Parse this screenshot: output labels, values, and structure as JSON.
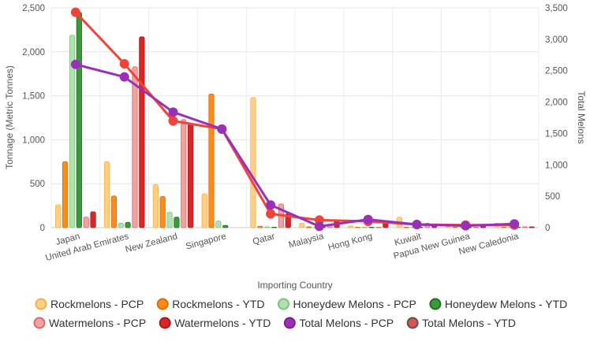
{
  "chart_data": {
    "type": "bar",
    "xlabel": "Importing Country",
    "ylabel_left": "Tonnage (Metric Tonnes)",
    "ylabel_right": "Total Melons",
    "ylim_left": [
      0,
      2500
    ],
    "ylim_right": [
      0,
      3500
    ],
    "yticks_left": [
      "0",
      "500",
      "1,000",
      "1,500",
      "2,000",
      "2,500"
    ],
    "yticks_right": [
      "0",
      "500",
      "1,000",
      "1,500",
      "2,000",
      "2,500",
      "3,000",
      "3,500"
    ],
    "grid": true,
    "legend_position": "bottom",
    "categories": [
      "Japan",
      "United Arab Emirates",
      "New Zealand",
      "Singapore",
      "Qatar",
      "Malaysia",
      "Hong Kong",
      "Kuwait",
      "Papua New Guinea",
      "New Caledonia"
    ],
    "bar_series": [
      {
        "name": "Rockmelons - PCP",
        "color": "#fdd08a",
        "edge": "#f5b04a",
        "values": [
          260,
          750,
          490,
          385,
          1480,
          50,
          20,
          120,
          10,
          50
        ]
      },
      {
        "name": "Rockmelons - YTD",
        "color": "#ff8c1a",
        "edge": "#e06b00",
        "values": [
          750,
          360,
          355,
          1520,
          15,
          10,
          5,
          5,
          5,
          5
        ]
      },
      {
        "name": "Honeydew Melons - PCP",
        "color": "#b3e0b3",
        "edge": "#7cc47c",
        "values": [
          2190,
          50,
          175,
          75,
          10,
          5,
          5,
          5,
          5,
          5
        ]
      },
      {
        "name": "Honeydew Melons - YTD",
        "color": "#3a9a3a",
        "edge": "#1f6e1f",
        "values": [
          2450,
          60,
          120,
          25,
          5,
          5,
          5,
          5,
          5,
          5
        ]
      },
      {
        "name": "Watermelons - PCP",
        "color": "#f2a0a0",
        "edge": "#d96a6a",
        "values": [
          120,
          1830,
          1230,
          0,
          270,
          30,
          5,
          50,
          5,
          10
        ]
      },
      {
        "name": "Watermelons - YTD",
        "color": "#d92626",
        "edge": "#a81818",
        "values": [
          180,
          2170,
          1180,
          0,
          160,
          80,
          80,
          40,
          20,
          10
        ]
      }
    ],
    "line_series": [
      {
        "name": "Total Melons - PCP",
        "color": "#9b30b8",
        "values": [
          2600,
          2400,
          1840,
          1570,
          360,
          20,
          130,
          50,
          30,
          60
        ]
      },
      {
        "name": "Total Melons - YTD",
        "color": "#f0443a",
        "values": [
          3430,
          2610,
          1700,
          1570,
          220,
          120,
          100,
          50,
          40,
          40
        ]
      }
    ],
    "legend": [
      {
        "name": "Rockmelons - PCP",
        "marker": "circle",
        "color": "#fdd08a",
        "edge": "#f5b04a"
      },
      {
        "name": "Rockmelons - YTD",
        "marker": "circle",
        "color": "#ff8c1a",
        "edge": "#e06b00"
      },
      {
        "name": "Honeydew Melons - PCP",
        "marker": "circle",
        "color": "#b3e0b3",
        "edge": "#7cc47c"
      },
      {
        "name": "Honeydew Melons - YTD",
        "marker": "circle",
        "color": "#3a9a3a",
        "edge": "#1f6e1f"
      },
      {
        "name": "Watermelons - PCP",
        "marker": "circle",
        "color": "#f2a0a0",
        "edge": "#d96a6a"
      },
      {
        "name": "Watermelons - YTD",
        "marker": "circle",
        "color": "#d92626",
        "edge": "#a81818"
      },
      {
        "name": "Total Melons - PCP",
        "marker": "circle",
        "color": "#9b30b8",
        "edge": "#7a1f93"
      },
      {
        "name": "Total Melons - YTD",
        "marker": "circle",
        "color": "#d9534f",
        "edge": "#555555"
      }
    ]
  }
}
